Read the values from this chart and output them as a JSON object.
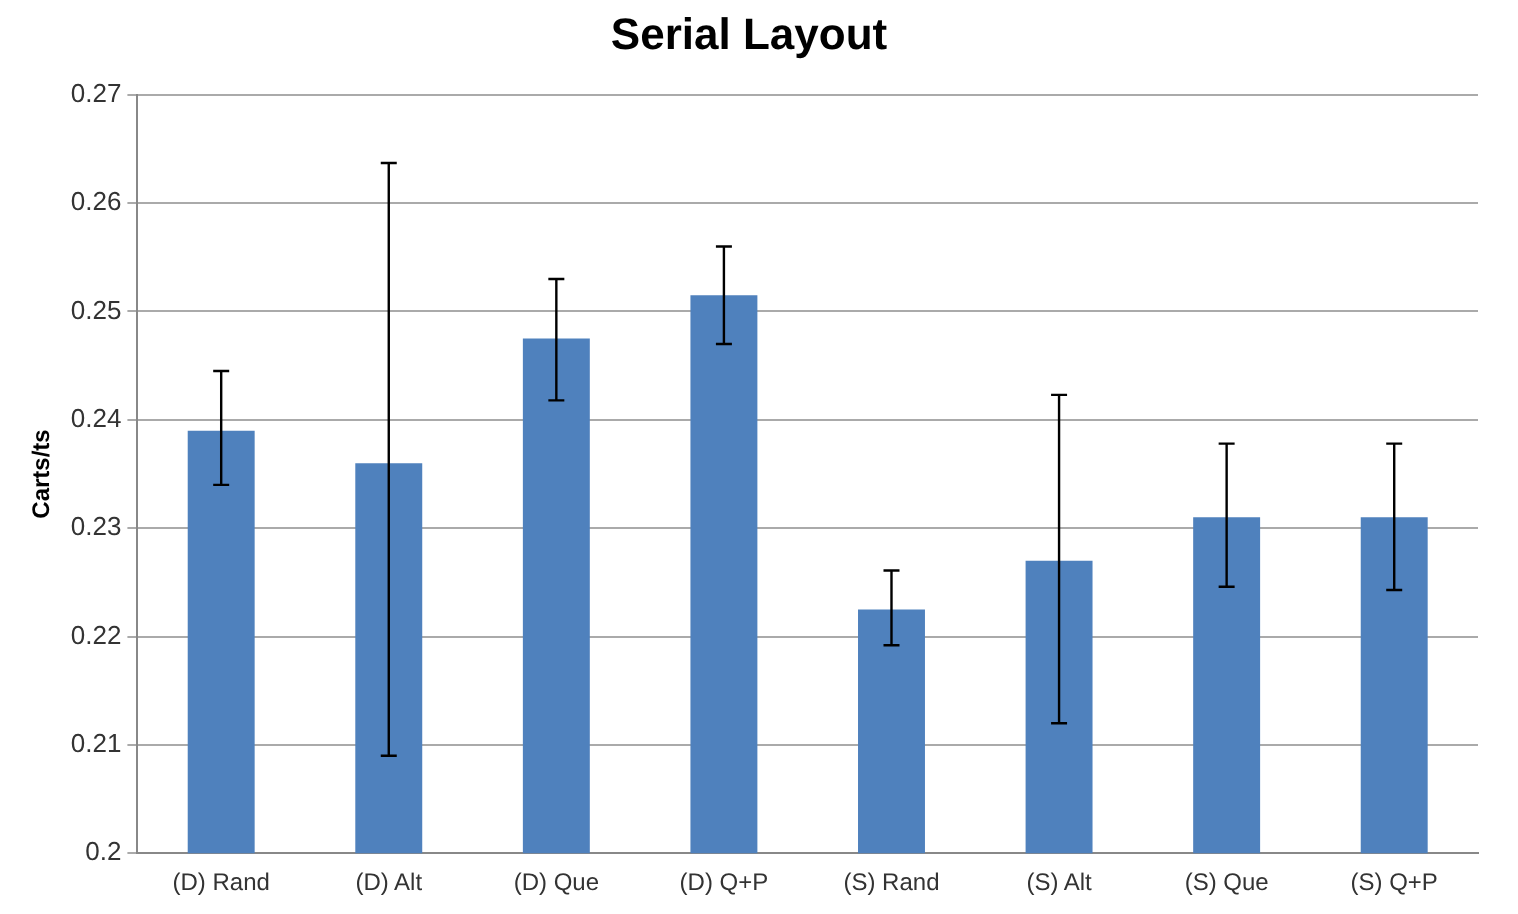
{
  "chart_data": {
    "type": "bar",
    "title": "Serial Layout",
    "ylabel": "Carts/ts",
    "categories": [
      "(D) Rand",
      "(D) Alt",
      "(D) Que",
      "(D) Q+P",
      "(S) Rand",
      "(S) Alt",
      "(S) Que",
      "(S) Q+P"
    ],
    "values": [
      0.239,
      0.236,
      0.2475,
      0.2515,
      0.2225,
      0.227,
      0.231,
      0.231
    ],
    "errors": [
      [
        0.234,
        0.2445
      ],
      [
        0.209,
        0.2637
      ],
      [
        0.2418,
        0.253
      ],
      [
        0.247,
        0.256
      ],
      [
        0.2192,
        0.2261
      ],
      [
        0.212,
        0.2423
      ],
      [
        0.2246,
        0.2378
      ],
      [
        0.2243,
        0.2378
      ]
    ],
    "color": "#4f81bd",
    "ylim": [
      0.2,
      0.27
    ],
    "yticks": [
      0.2,
      0.21,
      0.22,
      0.23,
      0.24,
      0.25,
      0.26,
      0.27
    ],
    "grid": "y",
    "legend": false
  }
}
